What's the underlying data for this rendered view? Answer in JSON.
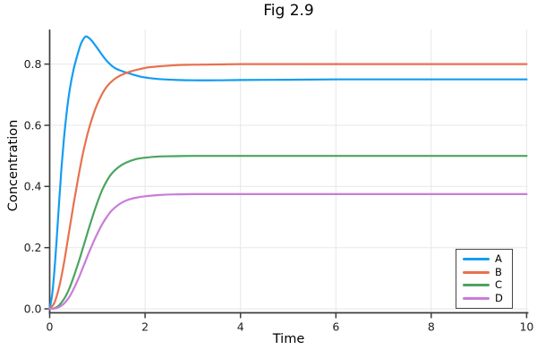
{
  "figure": {
    "title": "Fig 2.9",
    "xlabel": "Time",
    "ylabel": "Concentration"
  },
  "chart_data": {
    "type": "line",
    "title": "Fig 2.9",
    "xlabel": "Time",
    "ylabel": "Concentration",
    "xlim": [
      0,
      10.02
    ],
    "ylim": [
      -0.013,
      0.913
    ],
    "xticks": [
      0,
      2,
      4,
      6,
      8,
      10
    ],
    "xtick_labels": [
      "0",
      "2",
      "4",
      "6",
      "8",
      "10"
    ],
    "yticks": [
      0.0,
      0.2,
      0.4,
      0.6,
      0.8
    ],
    "ytick_labels": [
      "0.0",
      "0.2",
      "0.4",
      "0.6",
      "0.8"
    ],
    "grid": true,
    "legend_position": "bottom-right",
    "style": {
      "grid_color": "#e7e7e7",
      "spine_color": "#3d3d3d",
      "tick_label_color": "#1f1f1f",
      "background": "#ffffff"
    },
    "series": [
      {
        "name": "A",
        "color": "#149CF2",
        "final_value": 0.75,
        "peak": {
          "t": 0.75,
          "value": 0.89
        },
        "points": [
          [
            0,
            0
          ],
          [
            0.05,
            0.045
          ],
          [
            0.1,
            0.125
          ],
          [
            0.15,
            0.235
          ],
          [
            0.2,
            0.355
          ],
          [
            0.25,
            0.465
          ],
          [
            0.3,
            0.558
          ],
          [
            0.35,
            0.634
          ],
          [
            0.4,
            0.695
          ],
          [
            0.45,
            0.743
          ],
          [
            0.5,
            0.781
          ],
          [
            0.55,
            0.812
          ],
          [
            0.6,
            0.84
          ],
          [
            0.65,
            0.864
          ],
          [
            0.7,
            0.88
          ],
          [
            0.75,
            0.89
          ],
          [
            0.8,
            0.888
          ],
          [
            0.85,
            0.882
          ],
          [
            0.9,
            0.873
          ],
          [
            1.0,
            0.852
          ],
          [
            1.1,
            0.83
          ],
          [
            1.2,
            0.81
          ],
          [
            1.35,
            0.789
          ],
          [
            1.5,
            0.778
          ],
          [
            1.7,
            0.768
          ],
          [
            1.9,
            0.759
          ],
          [
            2.1,
            0.754
          ],
          [
            2.4,
            0.75
          ],
          [
            2.7,
            0.748
          ],
          [
            3.0,
            0.747
          ],
          [
            3.5,
            0.747
          ],
          [
            4.0,
            0.748
          ],
          [
            5.0,
            0.749
          ],
          [
            6.0,
            0.75
          ],
          [
            7.0,
            0.75
          ],
          [
            8.0,
            0.75
          ],
          [
            9.0,
            0.75
          ],
          [
            10.0,
            0.75
          ]
        ]
      },
      {
        "name": "B",
        "color": "#E8714E",
        "final_value": 0.8,
        "points": [
          [
            0,
            0
          ],
          [
            0.1,
            0.02
          ],
          [
            0.2,
            0.072
          ],
          [
            0.3,
            0.15
          ],
          [
            0.4,
            0.245
          ],
          [
            0.5,
            0.34
          ],
          [
            0.6,
            0.43
          ],
          [
            0.7,
            0.51
          ],
          [
            0.8,
            0.575
          ],
          [
            0.9,
            0.628
          ],
          [
            1.0,
            0.67
          ],
          [
            1.1,
            0.702
          ],
          [
            1.2,
            0.727
          ],
          [
            1.35,
            0.75
          ],
          [
            1.5,
            0.764
          ],
          [
            1.7,
            0.776
          ],
          [
            1.9,
            0.784
          ],
          [
            2.1,
            0.79
          ],
          [
            2.4,
            0.794
          ],
          [
            2.7,
            0.797
          ],
          [
            3.0,
            0.798
          ],
          [
            3.5,
            0.799
          ],
          [
            4.0,
            0.8
          ],
          [
            5.0,
            0.8
          ],
          [
            6.0,
            0.8
          ],
          [
            7.0,
            0.8
          ],
          [
            8.0,
            0.8
          ],
          [
            9.0,
            0.8
          ],
          [
            10.0,
            0.8
          ]
        ]
      },
      {
        "name": "C",
        "color": "#4BA45F",
        "final_value": 0.5,
        "points": [
          [
            0,
            0
          ],
          [
            0.1,
            0.002
          ],
          [
            0.2,
            0.012
          ],
          [
            0.3,
            0.032
          ],
          [
            0.4,
            0.062
          ],
          [
            0.5,
            0.103
          ],
          [
            0.6,
            0.15
          ],
          [
            0.7,
            0.2
          ],
          [
            0.8,
            0.252
          ],
          [
            0.9,
            0.302
          ],
          [
            1.0,
            0.348
          ],
          [
            1.1,
            0.388
          ],
          [
            1.2,
            0.419
          ],
          [
            1.3,
            0.442
          ],
          [
            1.45,
            0.464
          ],
          [
            1.6,
            0.478
          ],
          [
            1.8,
            0.489
          ],
          [
            2.0,
            0.494
          ],
          [
            2.3,
            0.498
          ],
          [
            2.6,
            0.499
          ],
          [
            3.0,
            0.5
          ],
          [
            4.0,
            0.5
          ],
          [
            5.0,
            0.5
          ],
          [
            6.0,
            0.5
          ],
          [
            7.0,
            0.5
          ],
          [
            8.0,
            0.5
          ],
          [
            9.0,
            0.5
          ],
          [
            10.0,
            0.5
          ]
        ]
      },
      {
        "name": "D",
        "color": "#C97DD8",
        "final_value": 0.375,
        "points": [
          [
            0,
            0
          ],
          [
            0.1,
            0.001
          ],
          [
            0.2,
            0.006
          ],
          [
            0.3,
            0.017
          ],
          [
            0.4,
            0.036
          ],
          [
            0.5,
            0.064
          ],
          [
            0.6,
            0.098
          ],
          [
            0.7,
            0.136
          ],
          [
            0.8,
            0.175
          ],
          [
            0.9,
            0.212
          ],
          [
            1.0,
            0.246
          ],
          [
            1.1,
            0.276
          ],
          [
            1.2,
            0.301
          ],
          [
            1.3,
            0.321
          ],
          [
            1.45,
            0.341
          ],
          [
            1.6,
            0.354
          ],
          [
            1.8,
            0.363
          ],
          [
            2.0,
            0.368
          ],
          [
            2.3,
            0.372
          ],
          [
            2.6,
            0.374
          ],
          [
            3.0,
            0.375
          ],
          [
            4.0,
            0.375
          ],
          [
            5.0,
            0.375
          ],
          [
            6.0,
            0.375
          ],
          [
            7.0,
            0.375
          ],
          [
            8.0,
            0.375
          ],
          [
            9.0,
            0.375
          ],
          [
            10.0,
            0.375
          ]
        ]
      }
    ]
  }
}
